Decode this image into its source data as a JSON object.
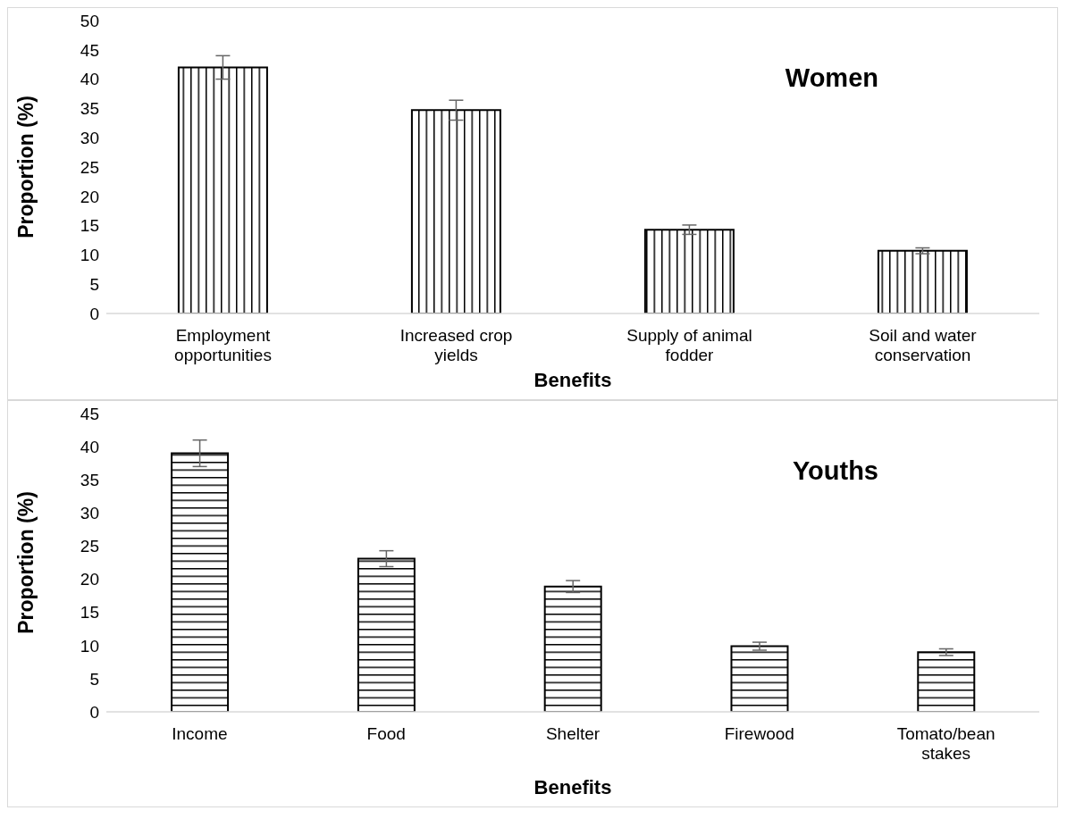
{
  "chart_data": [
    {
      "type": "bar",
      "title": "Women",
      "xlabel": "Benefits",
      "ylabel": "Proportion (%)",
      "categories": [
        "Employment opportunities",
        "Increased crop yields",
        "Supply of animal fodder",
        "Soil and water conservation"
      ],
      "values": [
        42,
        34.7,
        14.3,
        10.7
      ],
      "errors": [
        2,
        1.7,
        0.8,
        0.5
      ],
      "color": "#000000",
      "ylim": [
        0,
        50
      ],
      "yticks": [
        0,
        5,
        10,
        15,
        20,
        25,
        30,
        35,
        40,
        45,
        50
      ],
      "grid": false,
      "legend": false
    },
    {
      "type": "bar",
      "title": "Youths",
      "xlabel": "Benefits",
      "ylabel": "Proportion (%)",
      "categories": [
        "Income",
        "Food",
        "Shelter",
        "Firewood",
        "Tomato/bean stakes"
      ],
      "values": [
        39,
        23.1,
        18.9,
        9.9,
        9
      ],
      "errors": [
        2,
        1.2,
        0.9,
        0.6,
        0.5
      ],
      "color": "#000000",
      "ylim": [
        0,
        45
      ],
      "yticks": [
        0,
        5,
        10,
        15,
        20,
        25,
        30,
        35,
        40,
        45
      ],
      "grid": false,
      "legend": false
    }
  ]
}
